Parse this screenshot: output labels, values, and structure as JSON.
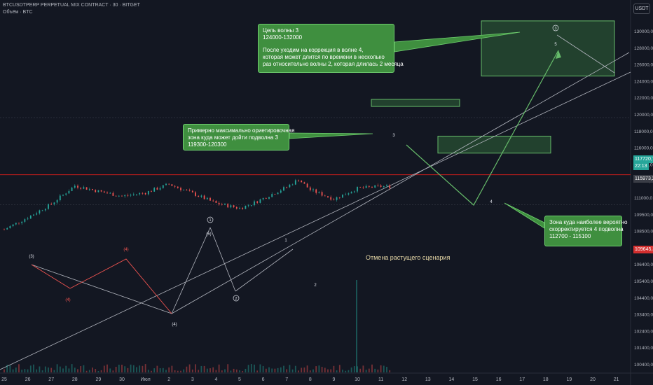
{
  "header": {
    "symbol_line": "BTCUSDTPERP PERPETUAL MIX CONTRACT · 30 · BITGET",
    "volume_line": "Объём · BTC",
    "currency": "USDT"
  },
  "chart_data": {
    "type": "candlestick",
    "x_ticks": [
      "25",
      "26",
      "27",
      "28",
      "29",
      "30",
      "Июл",
      "2",
      "3",
      "4",
      "5",
      "6",
      "7",
      "8",
      "9",
      "10",
      "11",
      "12",
      "13",
      "14",
      "15",
      "16",
      "17",
      "18",
      "19",
      "20",
      "21"
    ],
    "y_ticks": [
      "130000,0",
      "128000,0",
      "126000,0",
      "124000,0",
      "122000,0",
      "120000,0",
      "118000,0",
      "116000,0",
      "114000,0",
      "112500,0",
      "111000,0",
      "109500,0",
      "108500,0",
      "107400,0",
      "106400,0",
      "105400,0",
      "104400,0",
      "103400,0",
      "102400,0",
      "101400,0",
      "100400,0"
    ],
    "price_path": [
      [
        0,
        101900
      ],
      [
        2,
        103600
      ],
      [
        4,
        105500
      ],
      [
        6,
        108100
      ],
      [
        8,
        107300
      ],
      [
        10,
        106600
      ],
      [
        12,
        107100
      ],
      [
        14,
        108300
      ],
      [
        16,
        107000
      ],
      [
        18,
        105600
      ],
      [
        20,
        104900
      ],
      [
        21,
        105500
      ],
      [
        24,
        107900
      ],
      [
        25,
        109000
      ],
      [
        26,
        107500
      ],
      [
        28,
        106200
      ],
      [
        30,
        107700
      ],
      [
        32,
        108000
      ],
      [
        34,
        107900
      ],
      [
        36,
        108300
      ],
      [
        38,
        108400
      ],
      [
        40,
        108800
      ],
      [
        42,
        109700
      ],
      [
        44,
        108300
      ],
      [
        46,
        108100
      ],
      [
        48,
        108500
      ],
      [
        50,
        110000
      ],
      [
        51,
        111900
      ],
      [
        52,
        114800
      ],
      [
        53,
        116300
      ],
      [
        54,
        117400
      ],
      [
        55,
        118500
      ],
      [
        56,
        117700
      ]
    ],
    "wave_labels": [
      "(3)",
      "(4)",
      "(5)",
      "(4)",
      "(4)",
      "1",
      "2",
      "3",
      "4",
      "5"
    ],
    "circled_labels": [
      "1",
      "2",
      "3"
    ],
    "cancel_level": 109645.3,
    "price_badges": [
      {
        "label": "117720,7",
        "sub": "22:13",
        "color": "#26a69a"
      },
      {
        "label": "115973,2",
        "color": "#3a3d46"
      },
      {
        "label": "109645,3",
        "color": "#d32f2f"
      }
    ],
    "target_zone_wave3": [
      119300,
      120300
    ],
    "target_zone_wave4": [
      112700,
      115100
    ],
    "target_zone_wave5": [
      124000,
      132000
    ]
  },
  "annotations": {
    "top": {
      "line1": "Цель волны 3",
      "line2": "124000-132000",
      "line3": "После уходим на коррекция в волне 4,",
      "line4": "которая может длится по времени в несколько",
      "line5": "раз относительно волны 2, которая длилась 2 месяца"
    },
    "middle": {
      "line1": "Примерно максимально ориетировочная",
      "line2": "зона куда может дойти подволна 3",
      "line3": "119300-120300"
    },
    "right": {
      "line1": "Зона куда наиболее вероятно",
      "line2": "скорректируется 4 подволна",
      "line3": "112700 - 115100"
    },
    "cancel": "Отмена растущего сценария"
  },
  "colors": {
    "background": "#131722",
    "bull": "#26a69a",
    "bear": "#ef5350",
    "note_fill": "#3f8f3f",
    "cancel_line": "#b71c1c"
  }
}
